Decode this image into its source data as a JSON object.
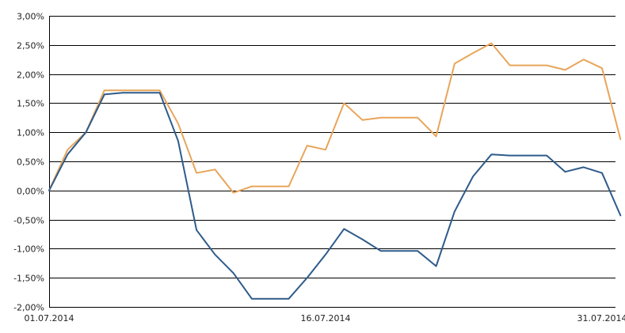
{
  "chart_data": {
    "type": "line",
    "title": "",
    "xlabel": "",
    "ylabel": "",
    "grid": true,
    "legend": "none",
    "x_ticks": [
      "01.07.2014",
      "16.07.2014",
      "31.07.2014"
    ],
    "y_ticks": [
      "3,00%",
      "2,50%",
      "2,00%",
      "1,50%",
      "1,00%",
      "0,50%",
      "0,00%",
      "-0,50%",
      "-1,00%",
      "-1,50%",
      "-2,00%"
    ],
    "ylim": [
      -2.0,
      3.0
    ],
    "xlim": [
      "2014-07-01",
      "2014-07-31"
    ],
    "x": [
      "2014-07-01",
      "2014-07-02",
      "2014-07-03",
      "2014-07-04",
      "2014-07-05",
      "2014-07-06",
      "2014-07-07",
      "2014-07-08",
      "2014-07-09",
      "2014-07-10",
      "2014-07-11",
      "2014-07-12",
      "2014-07-13",
      "2014-07-14",
      "2014-07-15",
      "2014-07-16",
      "2014-07-17",
      "2014-07-18",
      "2014-07-19",
      "2014-07-20",
      "2014-07-21",
      "2014-07-22",
      "2014-07-23",
      "2014-07-24",
      "2014-07-25",
      "2014-07-26",
      "2014-07-27",
      "2014-07-28",
      "2014-07-29",
      "2014-07-30",
      "2014-07-31",
      "2014-08-01"
    ],
    "series": [
      {
        "color": "#e8a55a",
        "values": [
          0.0,
          0.7,
          1.0,
          1.72,
          1.72,
          1.72,
          1.72,
          1.15,
          0.3,
          0.36,
          -0.04,
          0.07,
          0.07,
          0.07,
          0.77,
          0.7,
          1.5,
          1.21,
          1.25,
          1.25,
          1.25,
          0.93,
          2.18,
          2.36,
          2.53,
          2.15,
          2.15,
          2.15,
          2.07,
          2.25,
          2.1,
          0.88
        ]
      },
      {
        "color": "#2e5b8a",
        "values": [
          0.0,
          0.62,
          1.0,
          1.65,
          1.68,
          1.68,
          1.68,
          0.85,
          -0.68,
          -1.1,
          -1.42,
          -1.86,
          -1.86,
          -1.86,
          -1.5,
          -1.1,
          -0.66,
          -0.84,
          -1.04,
          -1.04,
          -1.04,
          -1.3,
          -0.36,
          0.24,
          0.62,
          0.6,
          0.6,
          0.6,
          0.32,
          0.4,
          0.3,
          -0.43
        ]
      }
    ]
  }
}
